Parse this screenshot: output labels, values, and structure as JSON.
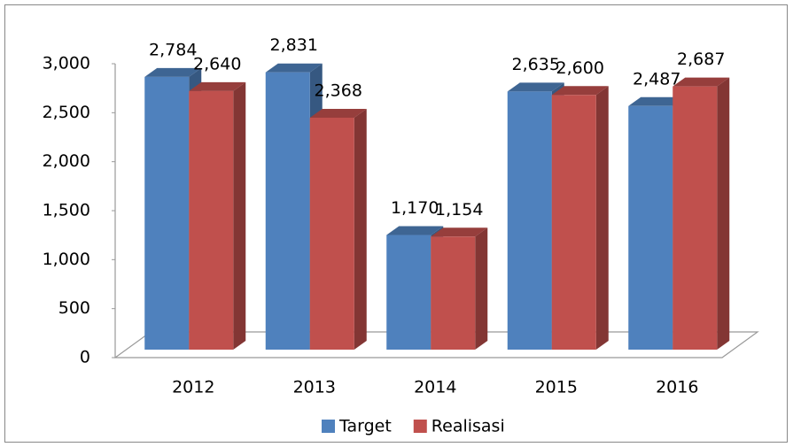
{
  "chart_data": {
    "type": "bar3d",
    "categories": [
      "2012",
      "2013",
      "2014",
      "2015",
      "2016"
    ],
    "series": [
      {
        "name": "Target",
        "color": "#4f81bd",
        "values": [
          2784,
          2831,
          1170,
          2635,
          2487
        ],
        "value_labels": [
          "2,784",
          "2,831",
          "1,170",
          "2,635",
          "2,487"
        ]
      },
      {
        "name": "Realisasi",
        "color": "#c0504d",
        "values": [
          2640,
          2368,
          1154,
          2600,
          2687
        ],
        "value_labels": [
          "2,640",
          "2,368",
          "1,154",
          "2,600",
          "2,687"
        ]
      }
    ],
    "ylim": [
      0,
      3000
    ],
    "yticks": [
      0,
      500,
      {
        "value": 1000,
        "label": "1,000"
      },
      {
        "value": 1500,
        "label": "1,500"
      },
      {
        "value": 2000,
        "label": "2,000"
      },
      {
        "value": 2500,
        "label": "2,500"
      },
      {
        "value": 3000,
        "label": "3,000"
      }
    ],
    "grid": false,
    "legend": "bottom"
  }
}
